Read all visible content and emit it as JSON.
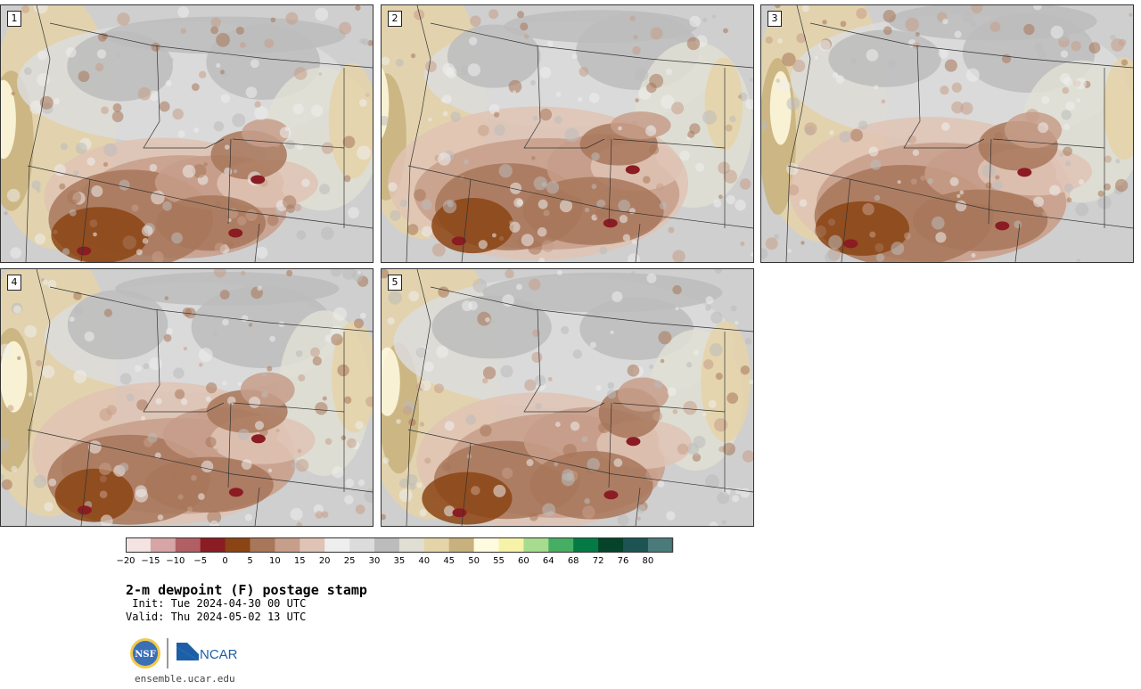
{
  "panels": [
    {
      "label": "1"
    },
    {
      "label": "2"
    },
    {
      "label": "3"
    },
    {
      "label": "4"
    },
    {
      "label": "5"
    }
  ],
  "colorbar": {
    "bins": [
      {
        "color": "#f3e3e3"
      },
      {
        "color": "#d7a5a5"
      },
      {
        "color": "#b25f63"
      },
      {
        "color": "#8b1c23"
      },
      {
        "color": "#8b4414"
      },
      {
        "color": "#a8775a"
      },
      {
        "color": "#c79e89"
      },
      {
        "color": "#dfc3b4"
      },
      {
        "color": "#eeeeee"
      },
      {
        "color": "#dcdcdc"
      },
      {
        "color": "#bcbcbc"
      },
      {
        "color": "#e1dfd3"
      },
      {
        "color": "#e5d4a8"
      },
      {
        "color": "#c8b17c"
      },
      {
        "color": "#fffbe0"
      },
      {
        "color": "#f6f3a8"
      },
      {
        "color": "#a7dc8f"
      },
      {
        "color": "#46ae63"
      },
      {
        "color": "#047a44"
      },
      {
        "color": "#05432a"
      },
      {
        "color": "#1c5353"
      },
      {
        "color": "#4b7a7a"
      }
    ],
    "ticks": [
      "−20",
      "−15",
      "−10",
      "−5",
      "0",
      "5",
      "10",
      "15",
      "20",
      "25",
      "30",
      "35",
      "40",
      "45",
      "50",
      "55",
      "60",
      "64",
      "68",
      "72",
      "76",
      "80"
    ]
  },
  "title": "2-m dewpoint (F) postage stamp",
  "init": " Init: Tue 2024-04-30 00 UTC",
  "valid": "Valid: Thu 2024-05-02 13 UTC",
  "logos": {
    "nsf_text": "NSF",
    "ncar_text": "NCAR"
  },
  "url": "ensemble.ucar.edu"
}
